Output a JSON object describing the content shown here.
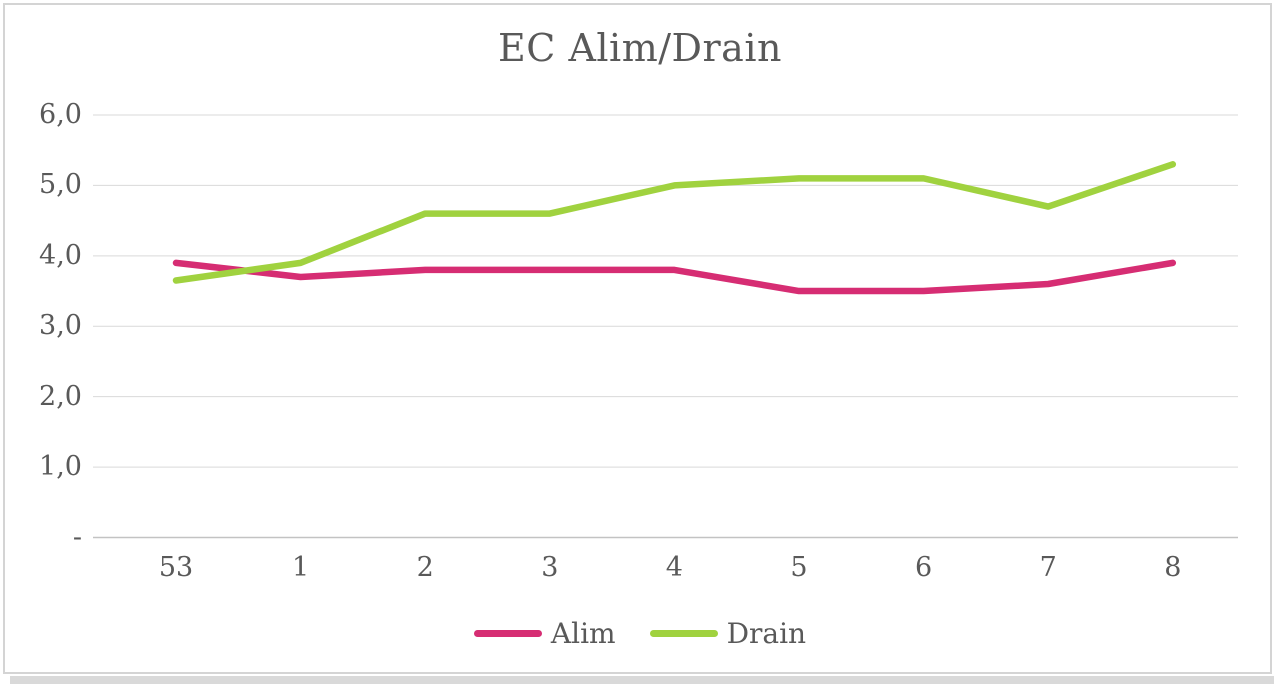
{
  "chart_data": {
    "type": "line",
    "title": "EC Alim/Drain",
    "categories": [
      "53",
      "1",
      "2",
      "3",
      "4",
      "5",
      "6",
      "7",
      "8"
    ],
    "series": [
      {
        "name": "Alim",
        "color": "#d62d73",
        "values": [
          3.9,
          3.7,
          3.8,
          3.8,
          3.8,
          3.5,
          3.5,
          3.6,
          3.9
        ]
      },
      {
        "name": "Drain",
        "color": "#a0d23f",
        "values": [
          3.65,
          3.9,
          4.6,
          4.6,
          5.0,
          5.1,
          5.1,
          4.7,
          5.3
        ]
      }
    ],
    "y_axis": {
      "min": 0,
      "max": 6,
      "step": 1,
      "tick_labels": [
        "-",
        "1,0",
        "2,0",
        "3,0",
        "4,0",
        "5,0",
        "6,0"
      ]
    },
    "x_axis": {
      "label": ""
    },
    "grid": true,
    "legend_position": "bottom"
  },
  "colors": {
    "text": "#595959",
    "gridline": "#d9d9d9",
    "axis_line": "#c3c3c3",
    "frame_border": "#d4d4d4",
    "background": "#ffffff"
  }
}
